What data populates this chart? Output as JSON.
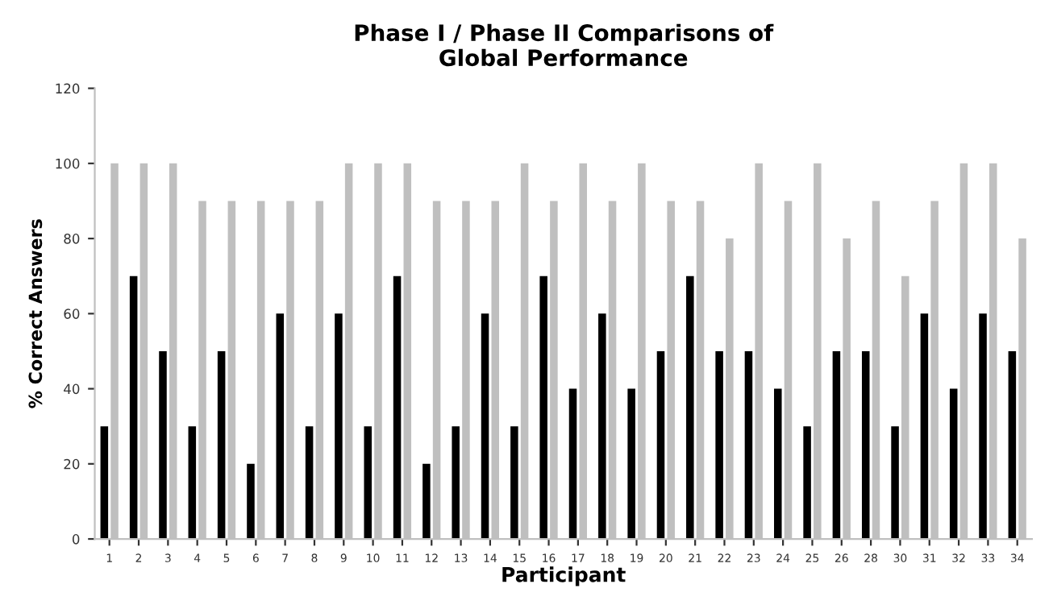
{
  "chart_data": {
    "type": "bar",
    "title": "Phase I / Phase II Comparisons of\nGlobal Performance",
    "xlabel": "Participant",
    "ylabel": "% Correct Answers",
    "categories": [
      "1",
      "2",
      "3",
      "4",
      "5",
      "6",
      "7",
      "8",
      "9",
      "10",
      "11",
      "12",
      "13",
      "14",
      "15",
      "16",
      "17",
      "18",
      "19",
      "20",
      "21",
      "22",
      "23",
      "24",
      "25",
      "26",
      "28",
      "30",
      "31",
      "32",
      "33",
      "34"
    ],
    "series": [
      {
        "color": "#000000",
        "values": [
          30,
          70,
          50,
          30,
          50,
          20,
          60,
          30,
          60,
          30,
          70,
          20,
          30,
          60,
          30,
          70,
          40,
          60,
          40,
          50,
          70,
          50,
          50,
          40,
          30,
          50,
          50,
          30,
          60,
          40,
          60,
          50
        ]
      },
      {
        "color": "#bfbfbf",
        "values": [
          100,
          100,
          100,
          90,
          90,
          90,
          90,
          90,
          100,
          100,
          100,
          90,
          90,
          90,
          100,
          90,
          100,
          90,
          100,
          90,
          90,
          80,
          100,
          90,
          100,
          80,
          90,
          70,
          90,
          100,
          100,
          80
        ]
      }
    ],
    "ylim": [
      0,
      120
    ],
    "yticks": [
      0,
      20,
      40,
      60,
      80,
      100,
      120
    ],
    "grid": false,
    "legend": false
  }
}
